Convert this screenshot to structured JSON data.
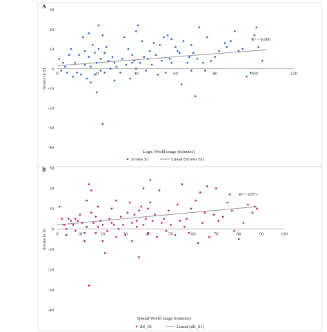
{
  "chart_data": [
    {
      "panel": "A",
      "type": "scatter",
      "xlabel": "Logic World usage (minutes)",
      "ylabel": "Scores in S1",
      "xlim": [
        0,
        120
      ],
      "ylim": [
        -40,
        30
      ],
      "xticks": [
        0,
        20,
        40,
        60,
        80,
        100,
        120
      ],
      "yticks": [
        -40,
        -30,
        -20,
        -10,
        0,
        10,
        20,
        30
      ],
      "grid": false,
      "legend_position": "bottom",
      "color": "#1f5fbf",
      "trend_color": "#999999",
      "series": [
        {
          "name": "Scores S1"
        }
      ],
      "legend": [
        "Scores S1",
        "Lineal (Scores S1)"
      ],
      "r2_label": "R² = 0,066",
      "trendline": {
        "x": [
          0,
          106
        ],
        "y": [
          1.5,
          9.6
        ]
      },
      "points": [
        [
          1,
          5
        ],
        [
          2,
          -1
        ],
        [
          3,
          3
        ],
        [
          4,
          1
        ],
        [
          5,
          -2
        ],
        [
          6,
          7
        ],
        [
          7,
          10
        ],
        [
          8,
          -4
        ],
        [
          9,
          3
        ],
        [
          10,
          -2
        ],
        [
          11,
          7
        ],
        [
          12,
          -3
        ],
        [
          13,
          16
        ],
        [
          14,
          9
        ],
        [
          14,
          2
        ],
        [
          15,
          -5
        ],
        [
          16,
          18
        ],
        [
          16,
          6
        ],
        [
          17,
          -7
        ],
        [
          17,
          1
        ],
        [
          18,
          12
        ],
        [
          19,
          8
        ],
        [
          19,
          -3
        ],
        [
          20,
          -12
        ],
        [
          20,
          3
        ],
        [
          21,
          22
        ],
        [
          21,
          10
        ],
        [
          22,
          5
        ],
        [
          22,
          -1
        ],
        [
          23,
          -28
        ],
        [
          23,
          17
        ],
        [
          24,
          -2
        ],
        [
          24,
          8
        ],
        [
          25,
          11
        ],
        [
          26,
          4
        ],
        [
          27,
          0
        ],
        [
          28,
          6
        ],
        [
          29,
          -6
        ],
        [
          29,
          3
        ],
        [
          30,
          1
        ],
        [
          32,
          -2
        ],
        [
          33,
          5
        ],
        [
          34,
          16
        ],
        [
          35,
          2
        ],
        [
          36,
          10
        ],
        [
          37,
          -5
        ],
        [
          38,
          7
        ],
        [
          38,
          3
        ],
        [
          39,
          4
        ],
        [
          40,
          19
        ],
        [
          40,
          0
        ],
        [
          41,
          22
        ],
        [
          42,
          3
        ],
        [
          43,
          14
        ],
        [
          44,
          6
        ],
        [
          45,
          -1
        ],
        [
          46,
          5
        ],
        [
          47,
          9
        ],
        [
          48,
          2
        ],
        [
          49,
          13
        ],
        [
          50,
          7
        ],
        [
          51,
          -3
        ],
        [
          52,
          12
        ],
        [
          53,
          4
        ],
        [
          54,
          16
        ],
        [
          55,
          -2
        ],
        [
          56,
          17
        ],
        [
          57,
          5
        ],
        [
          58,
          15
        ],
        [
          58,
          3
        ],
        [
          60,
          11
        ],
        [
          61,
          9
        ],
        [
          62,
          8
        ],
        [
          63,
          -8
        ],
        [
          64,
          14
        ],
        [
          66,
          3
        ],
        [
          67,
          6
        ],
        [
          68,
          12
        ],
        [
          68,
          -1
        ],
        [
          69,
          8
        ],
        [
          70,
          -14
        ],
        [
          71,
          5
        ],
        [
          72,
          21
        ],
        [
          74,
          3
        ],
        [
          75,
          -1
        ],
        [
          76,
          16
        ],
        [
          78,
          4
        ],
        [
          80,
          6
        ],
        [
          82,
          9
        ],
        [
          85,
          13
        ],
        [
          86,
          11
        ],
        [
          88,
          14
        ],
        [
          90,
          19
        ],
        [
          92,
          9
        ],
        [
          94,
          10
        ],
        [
          96,
          -4
        ],
        [
          98,
          -2
        ],
        [
          100,
          17
        ],
        [
          101,
          21
        ],
        [
          102,
          11
        ],
        [
          104,
          4
        ]
      ]
    },
    {
      "panel": "B",
      "type": "scatter",
      "xlabel": "Spatial World usage (minutes)",
      "ylabel": "Scores in S1",
      "xlim": [
        0,
        100
      ],
      "ylim": [
        -40,
        30
      ],
      "xticks": [
        0,
        10,
        20,
        30,
        40,
        50,
        60,
        70,
        80,
        90,
        100
      ],
      "yticks": [
        -40,
        -30,
        -20,
        -10,
        0,
        10,
        20,
        30
      ],
      "grid": false,
      "legend_position": "bottom",
      "color": "#c0143c",
      "trend_color": "#999999",
      "series": [
        {
          "name": "dif_S1"
        }
      ],
      "legend": [
        "dif_S1",
        "Lineal (dif_S1)"
      ],
      "r2_label": "R² = 0,071",
      "trendline": {
        "x": [
          0,
          88
        ],
        "y": [
          2.0,
          11.0
        ]
      },
      "points": [
        [
          1,
          11
        ],
        [
          2,
          5
        ],
        [
          3,
          2
        ],
        [
          4,
          0
        ],
        [
          4,
          -3
        ],
        [
          5,
          5
        ],
        [
          6,
          4
        ],
        [
          7,
          2
        ],
        [
          8,
          5
        ],
        [
          8,
          -1
        ],
        [
          9,
          4
        ],
        [
          10,
          7
        ],
        [
          11,
          3
        ],
        [
          12,
          -6
        ],
        [
          12,
          -2
        ],
        [
          13,
          14
        ],
        [
          13,
          1
        ],
        [
          14,
          22
        ],
        [
          14,
          -28
        ],
        [
          15,
          19
        ],
        [
          15,
          8
        ],
        [
          16,
          3
        ],
        [
          17,
          6
        ],
        [
          17,
          -2
        ],
        [
          18,
          11
        ],
        [
          18,
          1
        ],
        [
          19,
          4
        ],
        [
          20,
          2
        ],
        [
          20,
          -6
        ],
        [
          21,
          -12
        ],
        [
          22,
          -1
        ],
        [
          23,
          5
        ],
        [
          24,
          10
        ],
        [
          24,
          3
        ],
        [
          25,
          2
        ],
        [
          26,
          14
        ],
        [
          26,
          -4
        ],
        [
          27,
          0
        ],
        [
          28,
          6
        ],
        [
          29,
          2
        ],
        [
          30,
          -3
        ],
        [
          31,
          8
        ],
        [
          32,
          13
        ],
        [
          33,
          3
        ],
        [
          33,
          -6
        ],
        [
          34,
          7
        ],
        [
          35,
          4
        ],
        [
          35,
          1
        ],
        [
          36,
          -14
        ],
        [
          36,
          9
        ],
        [
          37,
          11
        ],
        [
          38,
          20
        ],
        [
          38,
          2
        ],
        [
          39,
          5
        ],
        [
          40,
          10
        ],
        [
          40,
          -2
        ],
        [
          41,
          24
        ],
        [
          41,
          13
        ],
        [
          42,
          4
        ],
        [
          43,
          7
        ],
        [
          44,
          -4
        ],
        [
          45,
          19
        ],
        [
          46,
          3
        ],
        [
          47,
          5
        ],
        [
          48,
          -1
        ],
        [
          49,
          9
        ],
        [
          50,
          2
        ],
        [
          52,
          -3
        ],
        [
          53,
          12
        ],
        [
          54,
          4
        ],
        [
          55,
          22
        ],
        [
          56,
          1
        ],
        [
          57,
          5
        ],
        [
          58,
          -2
        ],
        [
          59,
          10
        ],
        [
          61,
          14
        ],
        [
          62,
          -7
        ],
        [
          63,
          18
        ],
        [
          64,
          3
        ],
        [
          65,
          8
        ],
        [
          66,
          21
        ],
        [
          67,
          -4
        ],
        [
          69,
          7
        ],
        [
          70,
          20
        ],
        [
          71,
          4
        ],
        [
          73,
          6
        ],
        [
          75,
          13
        ],
        [
          76,
          17
        ],
        [
          77,
          9
        ],
        [
          78,
          -1
        ],
        [
          80,
          -5
        ],
        [
          82,
          3
        ],
        [
          84,
          12
        ],
        [
          86,
          8
        ],
        [
          87,
          11
        ],
        [
          88,
          10
        ]
      ]
    }
  ]
}
